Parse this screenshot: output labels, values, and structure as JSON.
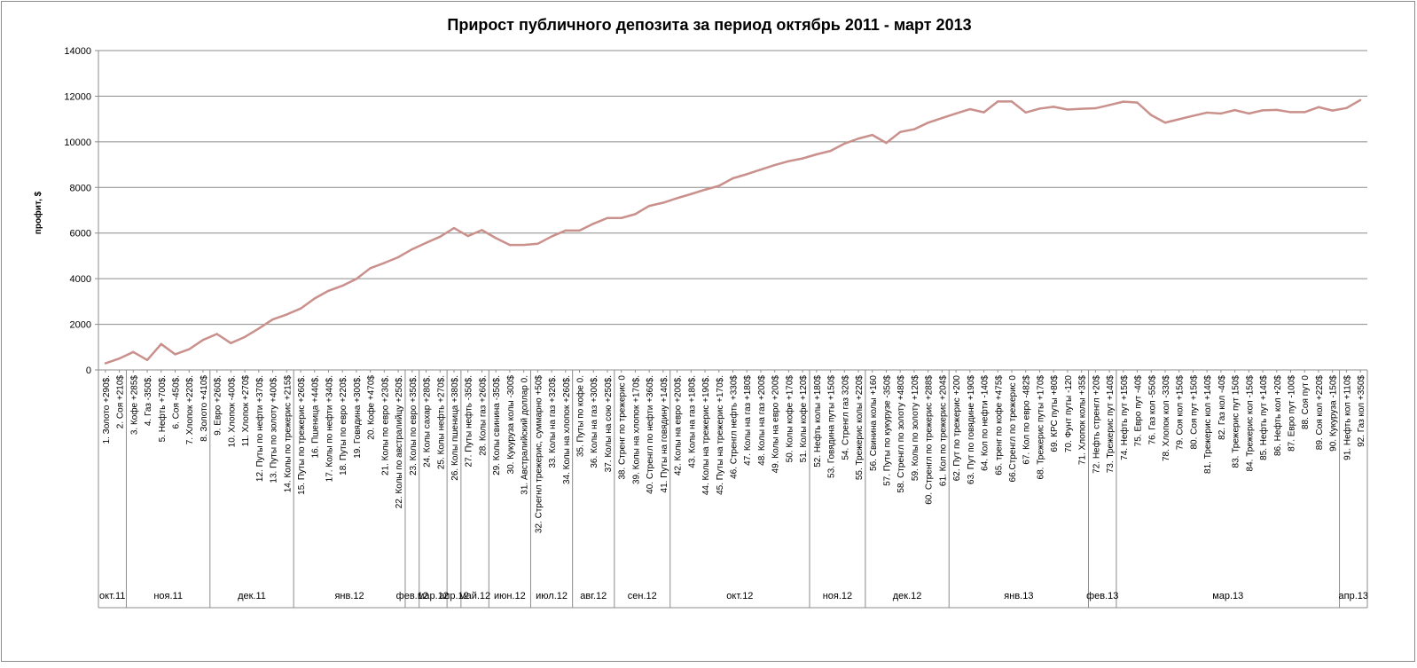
{
  "chart_data": {
    "type": "line",
    "title": "Прирост публичного депозита за период октябрь 2011 - март 2013",
    "ylabel": "профит, $",
    "xlabel": "",
    "ylim": [
      0,
      14000
    ],
    "y_ticks": [
      "0",
      "2000",
      "4000",
      "6000",
      "8000",
      "10000",
      "12000",
      "14000"
    ],
    "grid": true,
    "legend": "none",
    "line_color": "#c9908c",
    "categories": [
      "1. Золото +290$.",
      "2. Соя +210$",
      "3. Кофе +285$",
      "4. Газ -350$.",
      "5. Нефть +700$.",
      "6. Соя -450$.",
      "7. Хлопок +220$.",
      "8. Золото +410$",
      "9. Евро +260$.",
      "10. Хлопок -400$.",
      "11. Хлопок +270$",
      "12. Путы по нефти +370$.",
      "13. Путы по золоту +400$.",
      "14. Колы по трежерис +215$",
      "15. Путы по трежерис +260$.",
      "16. Пшеница +440$.",
      "17. Колы по нефти +340$.",
      "18. Путы по евро +220$.",
      "19. Говядина +300$.",
      "20. Кофе +470$",
      "21. Колы по евро +230$.",
      "22. Колы по австралийцу +250$.",
      "23. Колы по евро +350$.",
      "24. Колы сахар +280$.",
      "25. Колы нефть +270$.",
      "26. Колы пшеница +380$.",
      "27. Путы нефть -350$.",
      "28. Колы газ +260$.",
      "29. Колы свинина -350$.",
      "30. Кукуруза колы -300$",
      "31. Австралийский доллар 0.",
      "32. Стрегнл трежерис, суммарно +50$",
      "33. Колы на газ +320$.",
      "34. Колы на хлопок +260$.",
      "35. Путы по кофе 0.",
      "36. Колы на газ +300$.",
      "37. Колы на сою +250$.",
      "38. Стренг по трежерис 0",
      "39. Колы на хлопок +170$.",
      "40. Стренгл по нефти +360$.",
      "41. Путы на говядину +140$.",
      "42. Колы на евро +200$.",
      "43. Колы на газ +180$.",
      "44. Колы на трежерис +190$.",
      "45. Путы на трежерис +170$.",
      "46. Стренгл нефть +330$",
      "47. Колы на газ +180$",
      "48. Колы на газ +200$",
      "49. Колы на евро +200$",
      "50. Колы кофе +170$",
      "51. Колы кофе +120$",
      "52. Нефть колы +180$",
      "53. Говядина путы +150$",
      "54. Стренгл газ 320$",
      "55. Трежерис колы +220$",
      "56. Свинина колы +160",
      "57. Путы по кукурузе -350$",
      "58. Стренгл по золоту +480$",
      "59. Колы по золоту +120$",
      "60. Стренгл по трежерис +288$",
      "61. Кол по трежерис +204$",
      "62. Пут по трежерис +200",
      "63. Пут по говядине +190$",
      "64. Кол по нефти -140$",
      "65. тренг по кофе +475$",
      "66.Стренгл по трежерис 0",
      "67. Кол по евро -482$",
      "68. Трежерис путы +170$",
      "69. КРС путы +80$",
      "70. Фунт путы -120",
      "71. Хлопок колы +35$",
      "72. Нефть стренгл +20$",
      "73. Трежерис пут +140$",
      "74. Нефть пут +150$",
      "75. Евро пут -40$",
      "76. Газ кол -550$",
      "78. Хлопок кол -330$",
      "79. Соя кол +150$",
      "80. Соя пут +150$",
      "81. Трежерис кол +140$",
      "82. Газ кол -40$",
      "83. Трежерис пут 150$",
      "84. Трежерис кол -150$",
      "85. Нефть пут +140$",
      "86. Нефть кол +20$",
      "87. Евро пут -100$",
      "88. Соя пут 0",
      "89. Соя кол +220$",
      "90. Кукуруза -150$",
      "91. Нефть кол +110$",
      "92. Газ кол +350$"
    ],
    "values": [
      290,
      500,
      785,
      435,
      1135,
      685,
      905,
      1315,
      1575,
      1175,
      1445,
      1815,
      2215,
      2430,
      2690,
      3130,
      3470,
      3690,
      3990,
      4460,
      4690,
      4940,
      5290,
      5570,
      5840,
      6220,
      5870,
      6130,
      5780,
      5480,
      5480,
      5530,
      5850,
      6110,
      6110,
      6410,
      6660,
      6660,
      6830,
      7190,
      7330,
      7530,
      7710,
      7900,
      8070,
      8400,
      8580,
      8780,
      8980,
      9150,
      9270,
      9450,
      9600,
      9920,
      10140,
      10300,
      9950,
      10430,
      10550,
      10838,
      11042,
      11242,
      11432,
      11292,
      11767,
      11767,
      11285,
      11455,
      11535,
      11415,
      11450,
      11470,
      11610,
      11760,
      11720,
      11170,
      10840,
      10990,
      11140,
      11280,
      11240,
      11390,
      11240,
      11380,
      11400,
      11300,
      11300,
      11520,
      11370,
      11480,
      11830
    ],
    "months": [
      {
        "label": "окт.11",
        "count": 2
      },
      {
        "label": "ноя.11",
        "count": 6
      },
      {
        "label": "дек.11",
        "count": 6
      },
      {
        "label": "янв.12",
        "count": 8
      },
      {
        "label": "фев.12",
        "count": 1
      },
      {
        "label": "мар.12",
        "count": 2
      },
      {
        "label": "апр.12",
        "count": 1
      },
      {
        "label": "май.12",
        "count": 2
      },
      {
        "label": "июн.12",
        "count": 3
      },
      {
        "label": "июл.12",
        "count": 3
      },
      {
        "label": "авг.12",
        "count": 3
      },
      {
        "label": "сен.12",
        "count": 4
      },
      {
        "label": "окт.12",
        "count": 10
      },
      {
        "label": "ноя.12",
        "count": 4
      },
      {
        "label": "дек.12",
        "count": 6
      },
      {
        "label": "янв.13",
        "count": 10
      },
      {
        "label": "фев.13",
        "count": 2
      },
      {
        "label": "мар.13",
        "count": 16
      },
      {
        "label": "апр.13",
        "count": 2
      }
    ]
  }
}
